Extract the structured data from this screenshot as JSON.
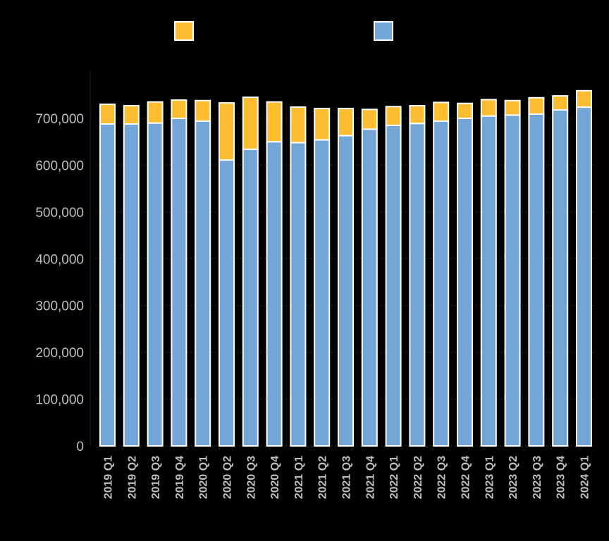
{
  "colors": {
    "background": "#000000",
    "series_top": "#FDBD30",
    "series_bottom": "#73A5D6",
    "bar_outline": "#FFFFFF",
    "text": "#BFBFBF",
    "grid": "#2A2A2A"
  },
  "chart_data": {
    "type": "bar",
    "stacked": true,
    "title": "",
    "xlabel": "",
    "ylabel": "",
    "ylim": [
      0,
      800000
    ],
    "yticks": [
      0,
      100000,
      200000,
      300000,
      400000,
      500000,
      600000,
      700000
    ],
    "ytick_labels": [
      "0",
      "100,000",
      "200,000",
      "300,000",
      "400,000",
      "500,000",
      "600,000",
      "700,000"
    ],
    "grid": true,
    "legend_position": "top",
    "categories": [
      "2019 Q1",
      "2019 Q2",
      "2019 Q3",
      "2019 Q4",
      "2020 Q1",
      "2020 Q2",
      "2020 Q3",
      "2020 Q4",
      "2021 Q1",
      "2021 Q2",
      "2021 Q3",
      "2021 Q4",
      "2022 Q1",
      "2022 Q2",
      "2022 Q3",
      "2022 Q4",
      "2023 Q1",
      "2023 Q2",
      "2023 Q3",
      "2023 Q4",
      "2024 Q1"
    ],
    "series": [
      {
        "name": "",
        "color": "#73A5D6",
        "values": [
          688000,
          688000,
          690000,
          700000,
          694000,
          611000,
          634000,
          650000,
          648000,
          654000,
          663000,
          677000,
          685000,
          689000,
          694000,
          700000,
          705000,
          707000,
          709000,
          718000,
          724000
        ]
      },
      {
        "name": "",
        "color": "#FDBD30",
        "values": [
          42000,
          39000,
          45000,
          39000,
          44000,
          122000,
          111000,
          85000,
          76000,
          67000,
          58000,
          42000,
          40000,
          38000,
          40000,
          32000,
          35000,
          31000,
          35000,
          30000,
          35000
        ]
      }
    ]
  }
}
